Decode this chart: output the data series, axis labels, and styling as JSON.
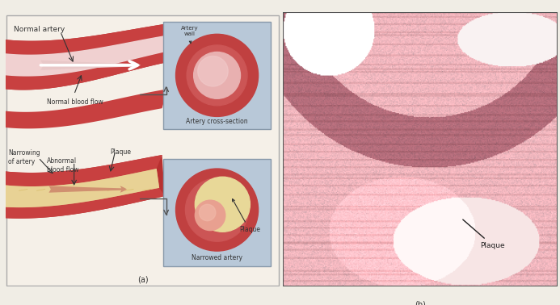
{
  "bg_color": "#f5f0e8",
  "panel_a_bg": "#f5f0e8",
  "panel_b_bg": "#ffffff",
  "outer_border": "#cccccc",
  "artery_outer_color": "#c0392b",
  "artery_wall_color": "#d9534f",
  "artery_inner_color": "#e8a0a0",
  "blood_flow_color": "#f0c0c0",
  "plaque_color": "#e8d8a0",
  "plaque_dark": "#c8b870",
  "cross_section_bg": "#b8c8d8",
  "label_color": "#333333",
  "arrow_color": "#333333",
  "caption_a": "(a)",
  "caption_b": "(b)",
  "label_normal_artery": "Normal artery",
  "label_normal_flow": "Normal blood flow",
  "label_narrowing": "Narrowing\nof artery",
  "label_abnormal": "Abnormal\nblood flow",
  "label_plaque1": "Plaque",
  "label_plaque2": "Plaque",
  "label_artery_wall": "Artery\nwall",
  "label_cross_section": "Artery cross-section",
  "label_narrowed": "Narrowed artery",
  "label_plaque_b": "Plaque"
}
